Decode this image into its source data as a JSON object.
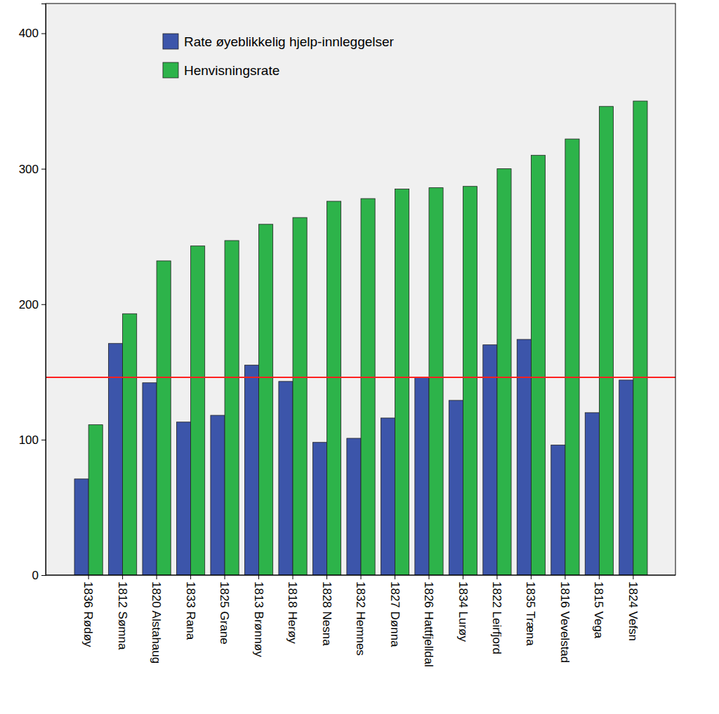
{
  "chart_data": {
    "type": "bar",
    "categories": [
      "1836 Rødøy",
      "1812 Sømna",
      "1820 Alstahaug",
      "1833 Rana",
      "1825 Grane",
      "1813 Brønnøy",
      "1818 Herøy",
      "1828 Nesna",
      "1832 Hemnes",
      "1827 Dønna",
      "1826 Hattfjelldal",
      "1834 Lurøy",
      "1822 Leirfjord",
      "1835 Træna",
      "1816 Vevelstad",
      "1815 Vega",
      "1824 Vefsn"
    ],
    "series": [
      {
        "name": "Rate øyeblikkelig hjelp-innleggelser",
        "color": "#3c55aa",
        "values": [
          71,
          171,
          142,
          113,
          118,
          155,
          143,
          98,
          101,
          116,
          146,
          129,
          170,
          174,
          96,
          120,
          144
        ]
      },
      {
        "name": "Henvisningsrate",
        "color": "#2db34a",
        "values": [
          111,
          193,
          232,
          243,
          247,
          259,
          264,
          276,
          278,
          285,
          286,
          287,
          300,
          310,
          322,
          346,
          350
        ]
      }
    ],
    "reference_line": {
      "value": 146,
      "color": "#ff2020"
    },
    "ylim": [
      0,
      422
    ],
    "yticks": [
      0,
      100,
      200,
      300,
      400
    ],
    "legend": "top-left",
    "grid": false
  }
}
